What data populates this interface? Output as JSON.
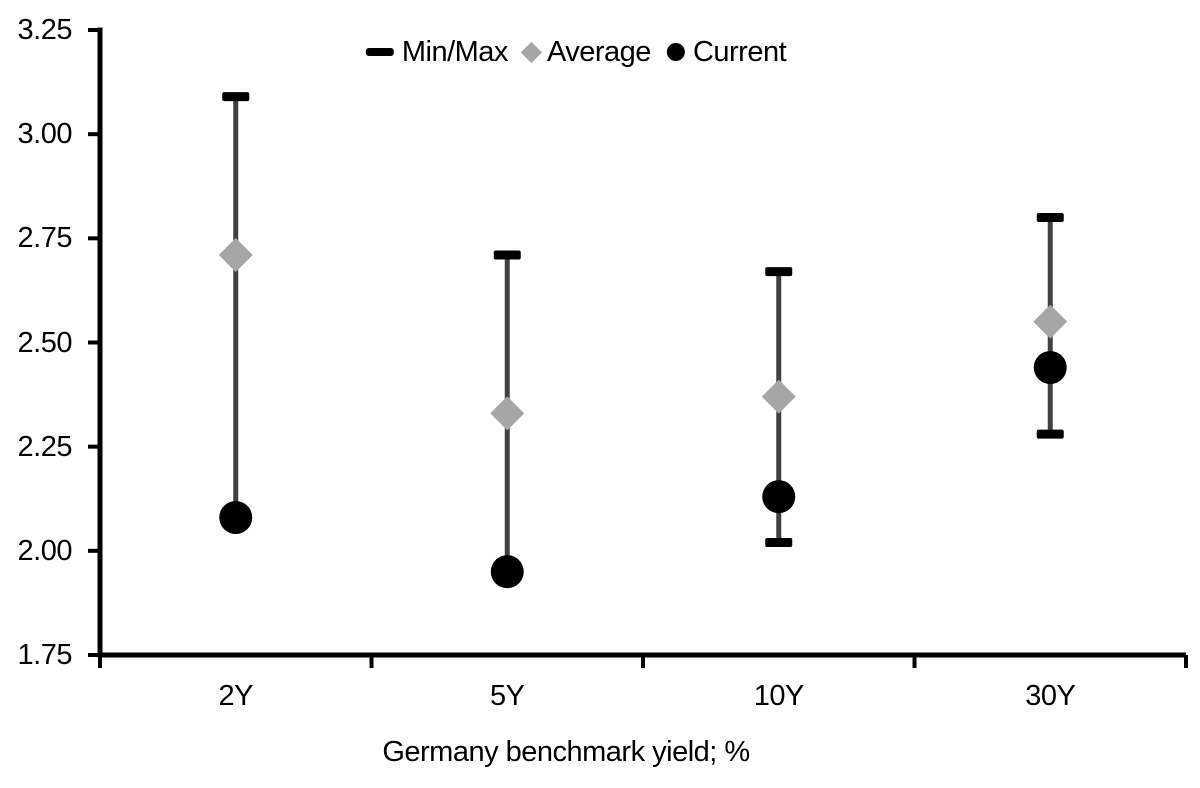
{
  "legend": {
    "minmax": "Min/Max",
    "average": "Average",
    "current": "Current"
  },
  "colors": {
    "background": "#ffffff",
    "text": "#000000",
    "axis": "#000000",
    "range_line": "#404040",
    "minmax_cap": "#000000",
    "average_marker": "#a6a6a6",
    "current_marker": "#000000"
  },
  "icons": {
    "minmax": "dash-icon",
    "average": "diamond-icon",
    "current": "circle-icon"
  },
  "chart_data": {
    "type": "scatter",
    "subtype": "min-max-range-with-markers",
    "categories": [
      "2Y",
      "5Y",
      "10Y",
      "30Y"
    ],
    "series": [
      {
        "name": "Max",
        "values": [
          3.09,
          2.71,
          2.67,
          2.8
        ]
      },
      {
        "name": "Min",
        "values": [
          2.08,
          1.95,
          2.02,
          2.28
        ]
      },
      {
        "name": "Average",
        "values": [
          2.71,
          2.33,
          2.37,
          2.55
        ]
      },
      {
        "name": "Current",
        "values": [
          2.08,
          1.95,
          2.13,
          2.44
        ]
      }
    ],
    "title": "",
    "xlabel": "Germany benchmark yield; %",
    "ylabel": "",
    "ylim": [
      1.75,
      3.25
    ],
    "ytick_step": 0.25,
    "yticks": [
      "3.25",
      "3.00",
      "2.75",
      "2.50",
      "2.25",
      "2.00",
      "1.75"
    ],
    "grid": false,
    "legend_position": "top-center",
    "notes": "2Y and 5Y current markers sit at the period minimum (bottom caps hidden behind circles)"
  }
}
